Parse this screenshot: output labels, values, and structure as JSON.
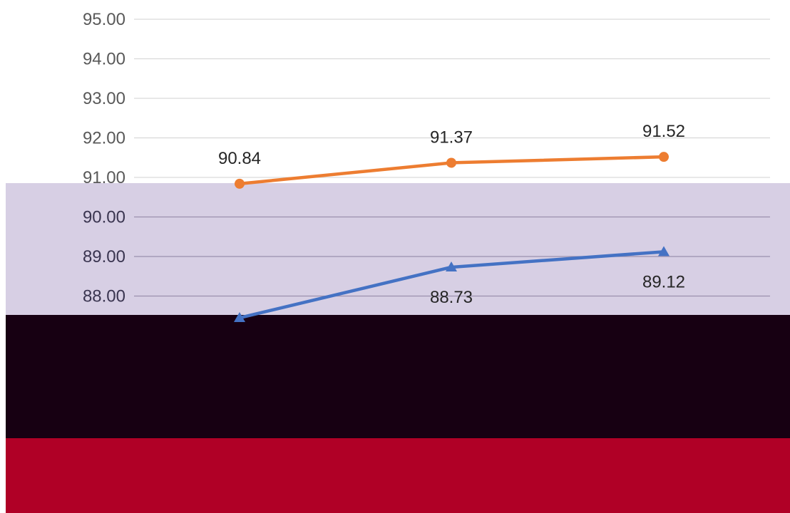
{
  "chart_data": {
    "type": "line",
    "title": "",
    "xlabel": "",
    "ylabel": "",
    "ylim": [
      85,
      95
    ],
    "y_tick_step": 1,
    "y_tick_format": "2-decimals",
    "grid": true,
    "series": [
      {
        "color": "#ED7D31",
        "marker": "circle",
        "values": [
          90.84,
          91.37,
          91.52
        ],
        "labels": [
          "90.84",
          "91.37",
          "91.52"
        ],
        "label_position": "above"
      },
      {
        "color": "#4472C4",
        "marker": "triangle",
        "values": [
          87.45,
          88.73,
          89.12
        ],
        "labels": [
          "",
          "88.73",
          "89.12"
        ],
        "label_position": "below"
      }
    ]
  },
  "overlays": [
    {
      "name": "lavender-band",
      "color": "#D5CDE3"
    },
    {
      "name": "dark-band",
      "color": "#170012"
    },
    {
      "name": "crimson-band",
      "color": "#B00026"
    }
  ]
}
